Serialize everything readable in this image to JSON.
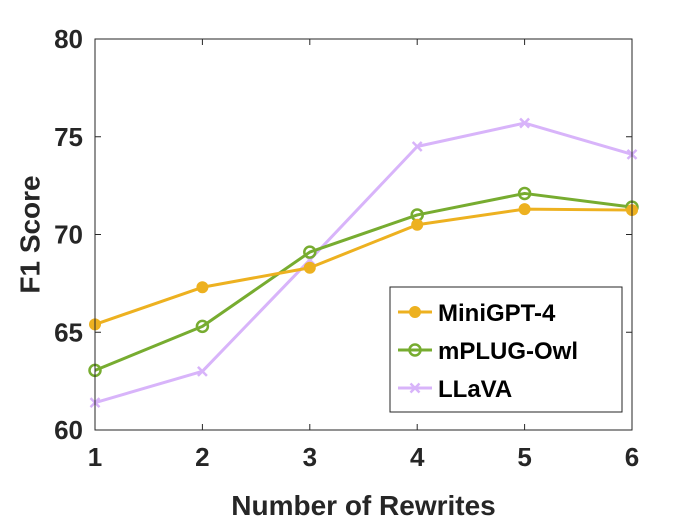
{
  "chart_data": {
    "type": "line",
    "title": "",
    "xlabel": "Number of Rewrites",
    "ylabel": "F1 Score",
    "x": [
      1,
      2,
      3,
      4,
      5,
      6
    ],
    "xlim": [
      1,
      6
    ],
    "ylim": [
      60,
      80
    ],
    "xticks": [
      "1",
      "2",
      "3",
      "4",
      "5",
      "6"
    ],
    "yticks": [
      "60",
      "65",
      "70",
      "75",
      "80"
    ],
    "grid": false,
    "legend_position": "bottom-right",
    "series": [
      {
        "name": "MiniGPT-4",
        "marker": "dot",
        "color": "#EDB120",
        "values": [
          65.4,
          67.3,
          68.3,
          70.5,
          71.3,
          71.25
        ]
      },
      {
        "name": "mPLUG-Owl",
        "marker": "circle",
        "color": "#77AC30",
        "values": [
          63.05,
          65.3,
          69.1,
          71.0,
          72.1,
          71.4
        ]
      },
      {
        "name": "LLaVA",
        "marker": "x",
        "color": "#D8B4FA",
        "values": [
          61.4,
          63.0,
          68.7,
          74.5,
          75.7,
          74.1
        ]
      }
    ]
  }
}
